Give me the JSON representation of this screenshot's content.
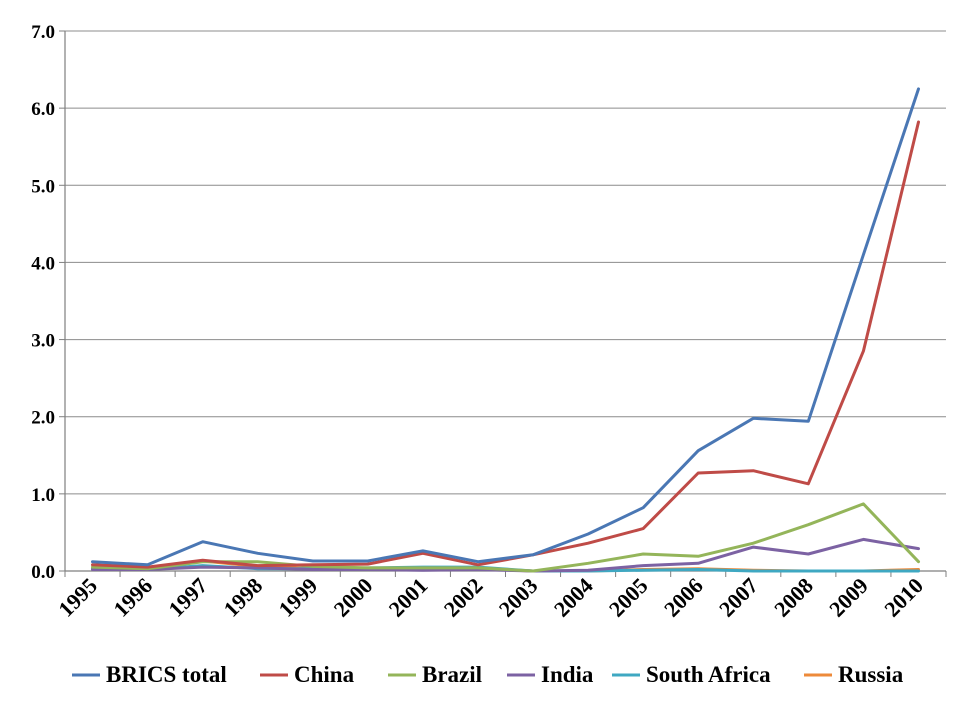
{
  "chart_data": {
    "type": "line",
    "x": [
      "1995",
      "1996",
      "1997",
      "1998",
      "1999",
      "2000",
      "2001",
      "2002",
      "2003",
      "2004",
      "2005",
      "2006",
      "2007",
      "2008",
      "2009",
      "2010"
    ],
    "ylim": [
      0,
      7
    ],
    "yticks": [
      "0.0",
      "1.0",
      "2.0",
      "3.0",
      "4.0",
      "5.0",
      "6.0",
      "7.0"
    ],
    "grid": true,
    "legend_position": "bottom",
    "series": [
      {
        "name": "BRICS total",
        "color": "#4a77b4",
        "values": [
          0.12,
          0.08,
          0.38,
          0.23,
          0.13,
          0.13,
          0.26,
          0.12,
          0.21,
          0.48,
          0.82,
          1.56,
          1.98,
          1.94,
          4.1,
          6.25
        ]
      },
      {
        "name": "China",
        "color": "#bf4b47",
        "values": [
          0.08,
          0.05,
          0.14,
          0.07,
          0.08,
          0.09,
          0.23,
          0.08,
          0.21,
          0.36,
          0.55,
          1.27,
          1.3,
          1.13,
          2.85,
          5.82
        ]
      },
      {
        "name": "Brazil",
        "color": "#94b55a",
        "values": [
          0.05,
          0.03,
          0.12,
          0.12,
          0.06,
          0.04,
          0.04,
          0.04,
          0.0,
          0.1,
          0.22,
          0.19,
          0.36,
          0.6,
          0.87,
          0.12
        ]
      },
      {
        "name": "India",
        "color": "#7c62a3",
        "values": [
          0.02,
          0.02,
          0.05,
          0.04,
          0.02,
          0.02,
          0.01,
          0.02,
          0.0,
          0.01,
          0.07,
          0.1,
          0.31,
          0.22,
          0.41,
          0.29
        ]
      },
      {
        "name": "South Africa",
        "color": "#3fa8c2",
        "values": [
          0.03,
          0.02,
          0.07,
          0.03,
          0.03,
          0.04,
          0.05,
          0.05,
          0.0,
          0.0,
          0.01,
          0.02,
          0.0,
          0.0,
          0.0,
          0.0
        ]
      },
      {
        "name": "Russia",
        "color": "#ed8a3a",
        "values": [
          0.03,
          0.02,
          0.13,
          0.06,
          0.03,
          0.03,
          0.02,
          0.03,
          0.0,
          0.0,
          0.02,
          0.03,
          0.01,
          0.0,
          0.0,
          0.02
        ]
      }
    ]
  }
}
